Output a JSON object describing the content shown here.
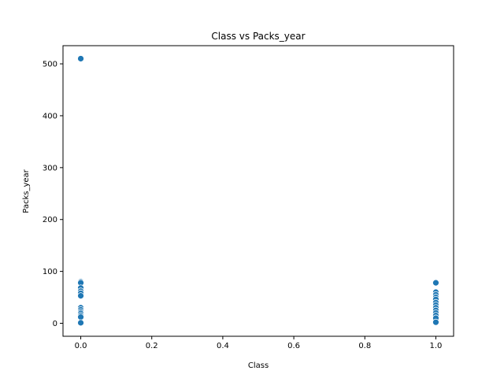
{
  "chart_data": {
    "type": "scatter",
    "title": "Class vs Packs_year",
    "xlabel": "Class",
    "ylabel": "Packs_year",
    "xlim": [
      -0.05,
      1.05
    ],
    "ylim": [
      -25,
      535
    ],
    "xticks": [
      0.0,
      0.2,
      0.4,
      0.6,
      0.8,
      1.0
    ],
    "xtick_labels": [
      "0.0",
      "0.2",
      "0.4",
      "0.6",
      "0.8",
      "1.0"
    ],
    "yticks": [
      0,
      100,
      200,
      300,
      400,
      500
    ],
    "ytick_labels": [
      "0",
      "100",
      "200",
      "300",
      "400",
      "500"
    ],
    "grid": false,
    "marker_color": "#1f77b4",
    "points": [
      {
        "x": 0,
        "y": 510
      },
      {
        "x": 0,
        "y": 80
      },
      {
        "x": 0,
        "y": 78
      },
      {
        "x": 0,
        "y": 68
      },
      {
        "x": 0,
        "y": 62
      },
      {
        "x": 0,
        "y": 58
      },
      {
        "x": 0,
        "y": 53
      },
      {
        "x": 0,
        "y": 30
      },
      {
        "x": 0,
        "y": 26
      },
      {
        "x": 0,
        "y": 22
      },
      {
        "x": 0,
        "y": 19
      },
      {
        "x": 0,
        "y": 15
      },
      {
        "x": 0,
        "y": 12
      },
      {
        "x": 0,
        "y": 1
      },
      {
        "x": 1,
        "y": 78
      },
      {
        "x": 1,
        "y": 60
      },
      {
        "x": 1,
        "y": 55
      },
      {
        "x": 1,
        "y": 50
      },
      {
        "x": 1,
        "y": 46
      },
      {
        "x": 1,
        "y": 40
      },
      {
        "x": 1,
        "y": 35
      },
      {
        "x": 1,
        "y": 30
      },
      {
        "x": 1,
        "y": 25
      },
      {
        "x": 1,
        "y": 20
      },
      {
        "x": 1,
        "y": 15
      },
      {
        "x": 1,
        "y": 10
      },
      {
        "x": 1,
        "y": 2
      }
    ]
  }
}
